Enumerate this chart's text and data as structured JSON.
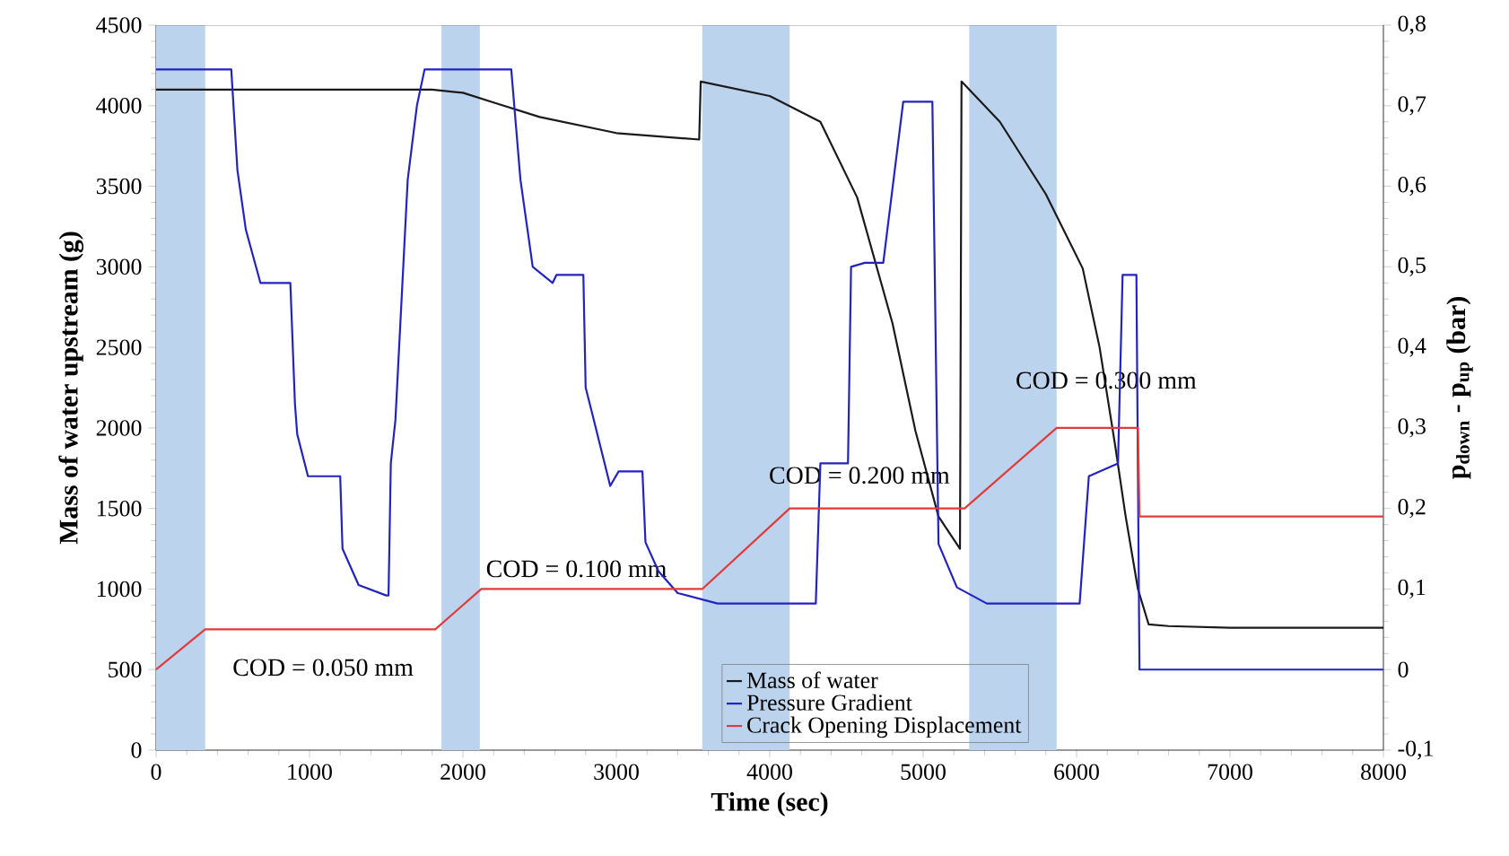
{
  "chart_data": {
    "type": "line",
    "xlabel": "Time (sec)",
    "ylabel": "Mass of water upstream (g)",
    "y2label": "p$_{down}$ - p$_{up}$ (bar)",
    "xlim": [
      0,
      8000
    ],
    "xticks": [
      0,
      1000,
      2000,
      3000,
      4000,
      5000,
      6000,
      7000,
      8000
    ],
    "ylim": [
      0,
      4500
    ],
    "yticks": [
      0,
      500,
      1000,
      1500,
      2000,
      2500,
      3000,
      3500,
      4000,
      4500
    ],
    "y2lim": [
      -0.1,
      0.8
    ],
    "y2ticks": [
      {
        "value": -0.1,
        "label": "-0,1"
      },
      {
        "value": 0,
        "label": "0"
      },
      {
        "value": 0.1,
        "label": "0,1"
      },
      {
        "value": 0.2,
        "label": "0,2"
      },
      {
        "value": 0.3,
        "label": "0,3"
      },
      {
        "value": 0.4,
        "label": "0,4"
      },
      {
        "value": 0.5,
        "label": "0,5"
      },
      {
        "value": 0.6,
        "label": "0,6"
      },
      {
        "value": 0.7,
        "label": "0,7"
      },
      {
        "value": 0.8,
        "label": "0,8"
      }
    ],
    "legend": "bottom",
    "series": [
      {
        "name": "Mass of water",
        "color": "#1a1a1a",
        "axis": "y",
        "x": [
          0,
          1800,
          2000,
          2200,
          2500,
          3000,
          3540,
          3550,
          4000,
          4330,
          4570,
          4800,
          4950,
          5100,
          5240,
          5250,
          5500,
          5800,
          6040,
          6150,
          6250,
          6320,
          6400,
          6470,
          6600,
          7000,
          8000
        ],
        "values": [
          4100,
          4100,
          4080,
          4020,
          3930,
          3830,
          3790,
          4150,
          4060,
          3900,
          3430,
          2650,
          1980,
          1450,
          1250,
          4150,
          3900,
          3450,
          2990,
          2500,
          1900,
          1450,
          1000,
          780,
          770,
          760,
          760
        ]
      },
      {
        "name": "Pressure Gradient",
        "color": "#2323c0",
        "axis": "y2",
        "x": [
          0,
          490,
          530,
          585,
          680,
          875,
          905,
          920,
          990,
          1200,
          1215,
          1320,
          1500,
          1515,
          1530,
          1560,
          1640,
          1700,
          1750,
          2315,
          2375,
          2455,
          2585,
          2610,
          2785,
          2800,
          2840,
          2960,
          3015,
          3170,
          3190,
          3275,
          3400,
          3660,
          4300,
          4330,
          4510,
          4530,
          4620,
          4740,
          4870,
          5060,
          5100,
          5220,
          5415,
          6020,
          6080,
          6270,
          6300,
          6390,
          6410,
          8000
        ],
        "values": [
          0.745,
          0.745,
          0.62,
          0.546,
          0.48,
          0.48,
          0.33,
          0.292,
          0.24,
          0.24,
          0.15,
          0.105,
          0.092,
          0.092,
          0.256,
          0.31,
          0.608,
          0.7,
          0.745,
          0.745,
          0.608,
          0.5,
          0.48,
          0.49,
          0.49,
          0.35,
          0.32,
          0.228,
          0.246,
          0.246,
          0.158,
          0.122,
          0.095,
          0.082,
          0.082,
          0.256,
          0.256,
          0.5,
          0.505,
          0.505,
          0.705,
          0.705,
          0.156,
          0.102,
          0.082,
          0.082,
          0.24,
          0.256,
          0.49,
          0.49,
          0.0,
          0.0
        ]
      },
      {
        "name": "Crack Opening Displacement",
        "color": "#e03a3a",
        "axis": "y2",
        "x": [
          0,
          320,
          1820,
          2120,
          3560,
          4130,
          5270,
          5870,
          6400,
          6410,
          8000
        ],
        "values": [
          0,
          0.05,
          0.05,
          0.1,
          0.1,
          0.2,
          0.2,
          0.3,
          0.3,
          0.19,
          0.19
        ]
      }
    ],
    "bands": [
      {
        "axis": "x",
        "from": 0,
        "to": 320,
        "color": "#bcd3ee"
      },
      {
        "axis": "x",
        "from": 1860,
        "to": 2110,
        "color": "#bcd3ee"
      },
      {
        "axis": "x",
        "from": 3560,
        "to": 4130,
        "color": "#bcd3ee"
      },
      {
        "axis": "x",
        "from": 5300,
        "to": 5870,
        "color": "#bcd3ee"
      }
    ],
    "annotations": [
      "COD = 0.050 mm",
      "COD = 0.100 mm",
      "COD = 0.200 mm",
      "COD = 0.300 mm"
    ]
  }
}
